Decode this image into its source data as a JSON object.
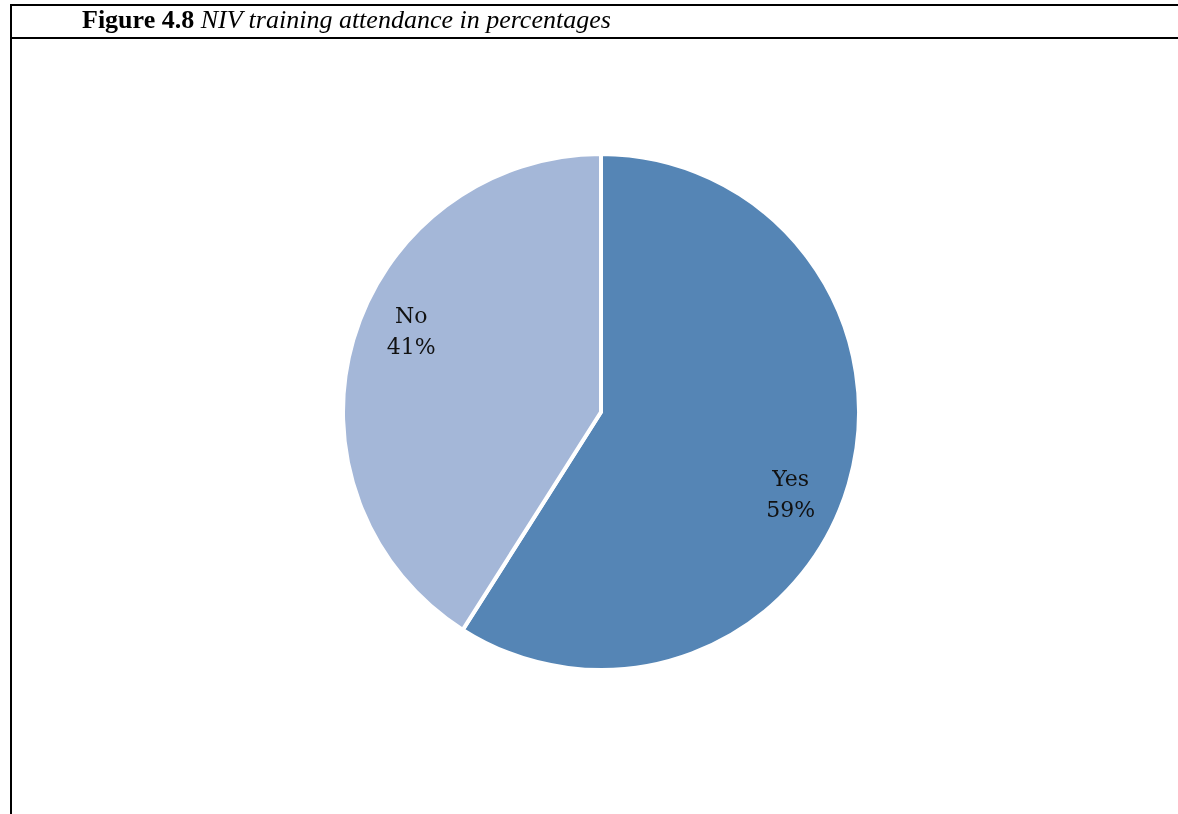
{
  "chart_data": {
    "type": "pie",
    "title": "Figure 4.8",
    "subtitle": "NIV training attendance in percentages",
    "categories": [
      "Yes",
      "No"
    ],
    "values": [
      59,
      41
    ],
    "colors": [
      "#5585b5",
      "#a4b7d8"
    ],
    "value_labels": [
      "59%",
      "41%"
    ]
  }
}
